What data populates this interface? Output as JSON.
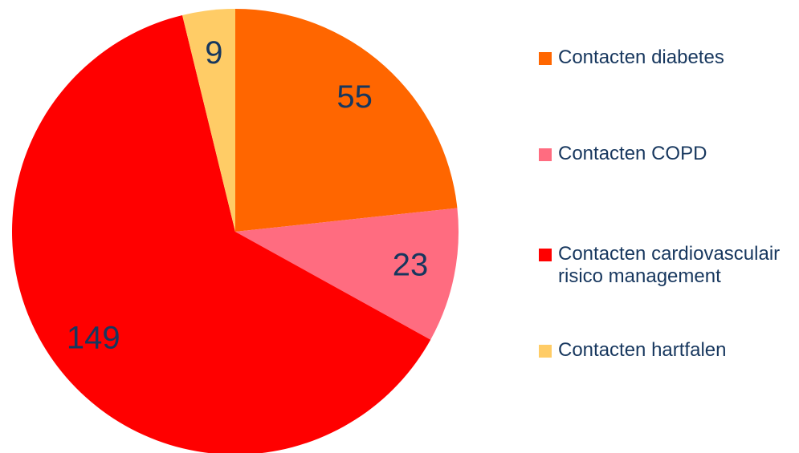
{
  "chart_data": {
    "type": "pie",
    "categories": [
      "Contacten diabetes",
      "Contacten COPD",
      "Contacten cardiovasculair risico management",
      "Contacten hartfalen"
    ],
    "values": [
      55,
      23,
      149,
      9
    ],
    "colors": [
      "#FF6600",
      "#FF6C80",
      "#FF0000",
      "#FFCC66"
    ]
  }
}
